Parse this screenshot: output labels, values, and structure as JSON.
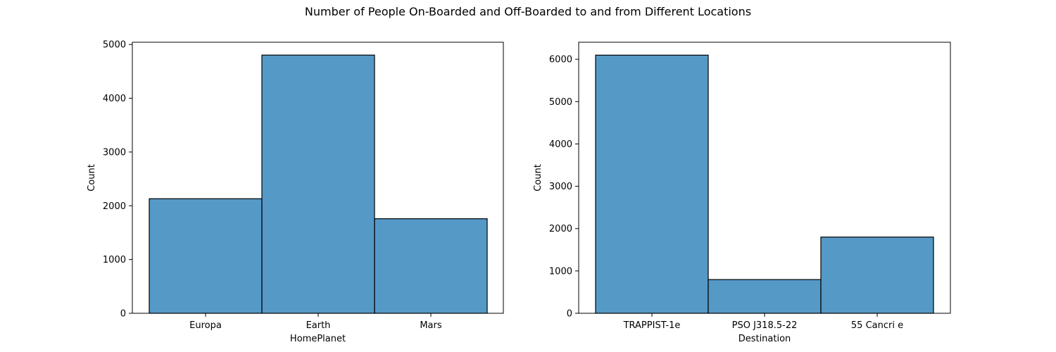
{
  "figure": {
    "title": "Number of People On-Boarded and Off-Boarded to and from Different Locations"
  },
  "colors": {
    "bar_fill": "#5599c7",
    "bar_edge": "#000000",
    "axis": "#000000"
  },
  "chart_data": [
    {
      "type": "bar",
      "title": "",
      "xlabel": "HomePlanet",
      "ylabel": "Count",
      "categories": [
        "Europa",
        "Earth",
        "Mars"
      ],
      "values": [
        2131,
        4803,
        1759
      ],
      "ylim": [
        0,
        5042
      ],
      "yticks": [
        0,
        1000,
        2000,
        3000,
        4000,
        5000
      ],
      "grid": false,
      "legend": "none"
    },
    {
      "type": "bar",
      "title": "",
      "xlabel": "Destination",
      "ylabel": "Count",
      "categories": [
        "TRAPPIST-1e",
        "PSO J318.5-22",
        "55 Cancri e"
      ],
      "values": [
        6097,
        796,
        1800
      ],
      "ylim": [
        0,
        6402
      ],
      "yticks": [
        0,
        1000,
        2000,
        3000,
        4000,
        5000,
        6000
      ],
      "grid": false,
      "legend": "none"
    }
  ]
}
